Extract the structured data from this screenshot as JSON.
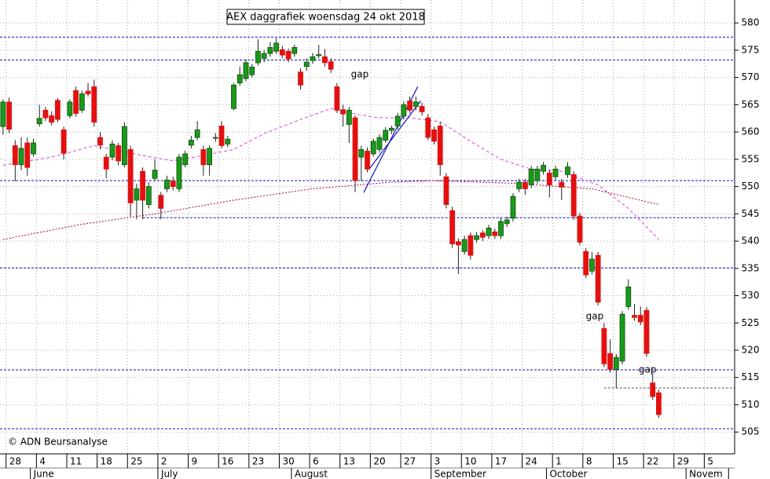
{
  "chart_data": {
    "type": "candlestick",
    "title": "AEX daggrafiek woensdag 24 okt 2018",
    "copyright": "© ADN Beursanalyse",
    "categories": [
      null,
      "28",
      null,
      null,
      null,
      null,
      "4",
      null,
      null,
      null,
      null,
      "11",
      null,
      null,
      null,
      null,
      "18",
      null,
      null,
      null,
      null,
      "25",
      null,
      null,
      null,
      null,
      "2",
      null,
      null,
      null,
      null,
      "9",
      null,
      null,
      null,
      null,
      "16",
      null,
      null,
      null,
      null,
      "23",
      null,
      null,
      null,
      null,
      "30",
      null,
      null,
      null,
      null,
      "6",
      null,
      null,
      null,
      null,
      "13",
      null,
      null,
      null,
      null,
      "20",
      null,
      null,
      null,
      null,
      "27",
      null,
      null,
      null,
      null,
      "3",
      null,
      null,
      null,
      null,
      "10",
      null,
      null,
      null,
      null,
      "17",
      null,
      null,
      null,
      null,
      "24",
      null,
      null,
      null,
      null,
      "1",
      null,
      null,
      null,
      null,
      "8",
      null,
      null,
      null,
      null,
      "15",
      null,
      null,
      null,
      null,
      "22",
      null,
      null,
      null,
      null,
      "29",
      null,
      null,
      null,
      null,
      "5",
      null,
      null,
      null,
      null
    ],
    "months": [
      null,
      null,
      null,
      null,
      null,
      "June",
      null,
      null,
      null,
      null,
      null,
      null,
      null,
      null,
      null,
      null,
      null,
      null,
      null,
      null,
      null,
      null,
      null,
      null,
      null,
      null,
      "July",
      null,
      null,
      null,
      null,
      null,
      null,
      null,
      null,
      null,
      null,
      null,
      null,
      null,
      null,
      null,
      null,
      null,
      null,
      null,
      null,
      null,
      "August",
      null,
      null,
      null,
      null,
      null,
      null,
      null,
      null,
      null,
      null,
      null,
      null,
      null,
      null,
      null,
      null,
      null,
      null,
      null,
      null,
      null,
      null,
      "September",
      null,
      null,
      null,
      null,
      null,
      null,
      null,
      null,
      null,
      null,
      null,
      null,
      null,
      null,
      null,
      null,
      null,
      null,
      "October",
      null,
      null,
      null,
      null,
      null,
      null,
      null,
      null,
      null,
      null,
      null,
      null,
      null,
      null,
      null,
      null,
      null,
      null,
      null,
      null,
      null,
      null,
      "Novem",
      null,
      null,
      null,
      null,
      null,
      null
    ],
    "candles": {
      "up_color": "#1a9a1a",
      "down_color": "#e41010",
      "open": [
        561,
        565.5,
        557.5,
        554,
        558,
        556,
        561.5,
        564,
        563,
        565.8,
        560.4,
        563,
        567.6,
        564,
        567.5,
        568.3,
        559,
        555.4,
        555.4,
        557.5,
        554,
        556.8,
        547.5,
        552.8,
        546.7,
        551.5,
        548.4,
        549.6,
        551,
        549.6,
        554,
        557.6,
        559,
        556.8,
        554,
        558.9,
        561.1,
        557.8,
        564.3,
        569,
        569.8,
        570.5,
        572.7,
        573.5,
        574.4,
        574.8,
        575.1,
        574.8,
        574.4,
        571,
        572,
        573.1,
        574,
        573.8,
        572.9,
        568.3,
        564.1,
        561.4,
        562.6,
        555.4,
        556.5,
        556,
        556.8,
        558.5,
        560.3,
        561.1,
        562.9,
        565.7,
        564.7,
        564.7,
        562.6,
        560.4,
        561.1,
        551.8,
        545.6,
        539.9,
        538.1,
        541,
        540.3,
        541.5,
        541,
        541.7,
        541,
        543.2,
        544.2,
        549.6,
        550.8,
        550.3,
        551.1,
        552.8,
        552.5,
        551.8,
        550.8,
        552.2,
        552.2,
        544.6,
        538.1,
        534.5,
        537.4,
        524,
        519.4,
        516.5,
        518,
        528,
        526.4,
        526.4,
        527.3,
        514,
        512.2,
        null,
        null,
        null,
        null,
        null,
        null,
        null,
        null,
        null,
        null,
        null,
        null
      ],
      "high": [
        566,
        566.3,
        558.5,
        559,
        559,
        558.8,
        565,
        564.6,
        563.8,
        566.2,
        561,
        566,
        568.3,
        567.6,
        569,
        569.6,
        560,
        556,
        558.5,
        558,
        561.8,
        557.5,
        550.5,
        553.5,
        550.8,
        555,
        549,
        552,
        551.8,
        556,
        556.6,
        559.3,
        562,
        557.5,
        557.6,
        559.8,
        562,
        559.3,
        569,
        572,
        573.3,
        572.5,
        577,
        575,
        576.5,
        577.2,
        575.8,
        575.3,
        576,
        571.7,
        573.5,
        574.5,
        576,
        575.2,
        573.5,
        569,
        565,
        564.6,
        563,
        557.5,
        557.2,
        558.8,
        559.6,
        560.9,
        561.2,
        563.5,
        565.6,
        566.5,
        566.5,
        565.4,
        563.3,
        561,
        561.8,
        552.5,
        546.3,
        540.5,
        541,
        541.6,
        541.7,
        542,
        543,
        542.3,
        544.3,
        544.5,
        548.8,
        551.4,
        551.4,
        553.8,
        553.8,
        554.5,
        553.1,
        553.8,
        551.4,
        554.5,
        552.8,
        545.2,
        538.7,
        538,
        538,
        525,
        522,
        519.3,
        527.2,
        533,
        528.5,
        528,
        527.9,
        515.7,
        512.8,
        null,
        null,
        null,
        null,
        null,
        null,
        null,
        null,
        null,
        null,
        null,
        null
      ],
      "low": [
        559.5,
        559.8,
        551,
        553,
        552,
        555.5,
        561,
        562,
        561.2,
        561.8,
        555,
        562.5,
        562.8,
        563.5,
        566.5,
        561,
        556.8,
        551.5,
        554.8,
        553.9,
        553.5,
        544.5,
        544,
        544,
        546,
        551,
        544,
        549,
        549.3,
        549,
        553.5,
        557,
        558.5,
        552,
        552,
        558.2,
        557,
        557.2,
        564,
        568.5,
        569.3,
        570,
        572.2,
        572.8,
        573.8,
        574.3,
        573.5,
        572.8,
        573.8,
        567.8,
        571.2,
        572.5,
        573.5,
        572,
        570.8,
        563.5,
        561,
        558,
        549,
        551,
        552.6,
        555.5,
        556.2,
        558,
        559.6,
        560.5,
        562.3,
        563.4,
        564,
        563,
        558.5,
        557.7,
        552,
        546,
        538.8,
        534,
        537.5,
        536.6,
        539.7,
        540,
        540.4,
        540.4,
        540.4,
        542.6,
        543.6,
        549,
        548.5,
        549.7,
        550.5,
        552.2,
        548,
        551.2,
        547.5,
        551.6,
        543.9,
        539.2,
        533.2,
        533.9,
        528.2,
        516.9,
        515.9,
        513,
        517.4,
        527.4,
        525.4,
        524.6,
        518.8,
        510.9,
        507.6,
        null,
        null,
        null,
        null,
        null,
        null,
        null,
        null,
        null,
        null,
        null,
        null
      ],
      "close": [
        565.5,
        560.5,
        554,
        557,
        553.5,
        558,
        562.5,
        562.6,
        561.8,
        562.3,
        556.1,
        565.5,
        563.4,
        567,
        567,
        561.8,
        557.6,
        553.2,
        557.8,
        554.7,
        561,
        547,
        549.6,
        547.5,
        550,
        553,
        546,
        551.2,
        550,
        555.4,
        556,
        558.5,
        560.4,
        554,
        557,
        559,
        557.5,
        558.7,
        568.6,
        570.5,
        572.7,
        571.9,
        574.8,
        574.4,
        575.5,
        576.3,
        574.1,
        573.4,
        575.5,
        568.6,
        572.8,
        573.8,
        574.2,
        572.7,
        571.5,
        564,
        563.3,
        564,
        551.1,
        556.8,
        553.2,
        558.3,
        559,
        560.3,
        560.7,
        562.9,
        565,
        564,
        565.5,
        563.7,
        559,
        558.3,
        554,
        546.7,
        539.5,
        539.3,
        540.3,
        537.4,
        541,
        540.7,
        542.4,
        541,
        543.6,
        543.9,
        548.2,
        550.8,
        549.6,
        553.2,
        553.2,
        553.9,
        550.3,
        553.2,
        549.9,
        553.6,
        544.6,
        539.8,
        533.8,
        536.7,
        528.8,
        517.5,
        516.5,
        518.7,
        526.6,
        531.6,
        526,
        525.2,
        519.4,
        511.5,
        508.2,
        null,
        null,
        null,
        null,
        null,
        null,
        null,
        null,
        null,
        null,
        null,
        null
      ]
    },
    "lines": [
      {
        "color": "#e040e0",
        "dash": "4,3",
        "x": [
          0,
          8,
          15,
          23,
          28,
          33,
          38,
          43,
          49,
          54,
          58,
          62,
          67,
          72,
          77,
          82,
          87,
          92,
          98,
          103,
          108
        ],
        "values": [
          553.9,
          555.4,
          557.5,
          555.7,
          554.7,
          555.7,
          556.8,
          559.7,
          562.3,
          564.3,
          563.3,
          562.6,
          562.6,
          561.9,
          558.3,
          555,
          553.2,
          552.8,
          550.3,
          546,
          540.3
        ]
      },
      {
        "color": "#b0003a",
        "dash": "2,2",
        "x": [
          0,
          13,
          25,
          38,
          51,
          64,
          71,
          84,
          97,
          108
        ],
        "values": [
          540.3,
          543.1,
          545,
          547.5,
          549.6,
          550.8,
          551.1,
          550.6,
          549.6,
          546.7
        ]
      }
    ],
    "hlines": [
      {
        "value": 577.4,
        "color": "#1010c0"
      },
      {
        "value": 573.2,
        "color": "#1010c0"
      },
      {
        "value": 551.1,
        "color": "#1010c0"
      },
      {
        "value": 544.3,
        "color": "#1010c0",
        "from": 23
      },
      {
        "value": 535.1,
        "color": "#1010c0"
      },
      {
        "value": 516.4,
        "color": "#1010c0"
      },
      {
        "value": 513.1,
        "color": "#555555",
        "from": 99
      },
      {
        "value": 505.6,
        "color": "#1010c0"
      }
    ],
    "trendlines": [
      {
        "color": "#1010c0",
        "x": [
          59.4,
          68.3
        ],
        "y": [
          548.9,
          568.3
        ]
      },
      {
        "color": "#1010c0",
        "x": [
          60.3,
          68.8
        ],
        "y": [
          553.2,
          565.7
        ]
      }
    ],
    "annotations": [
      {
        "text": "gap",
        "x": 57.3,
        "y": 570.5,
        "color": "#000000"
      },
      {
        "text": "gap",
        "x": 96,
        "y": 526.2,
        "color": "#bbbbbb"
      },
      {
        "text": "gap",
        "x": 104.7,
        "y": 516.4,
        "color": "#000000"
      }
    ],
    "ylim": [
      501,
      584.2
    ],
    "yticks": [
      505,
      510,
      515,
      520,
      525,
      530,
      535,
      540,
      545,
      550,
      555,
      560,
      565,
      570,
      575,
      580
    ],
    "grid": true
  }
}
